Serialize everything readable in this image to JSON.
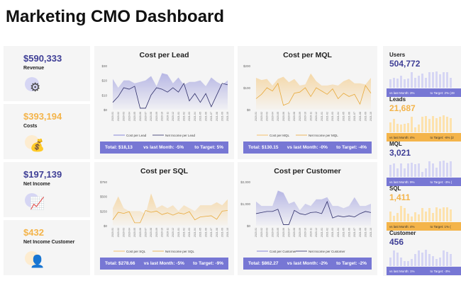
{
  "title": "Marketing CMO Dashboard",
  "colors": {
    "purple": "#7777d4",
    "navy": "#3f3f96",
    "orange": "#f4b44a",
    "light_purple": "#d6d6f4",
    "light_orange": "#fde2ad"
  },
  "kpis": [
    {
      "value": "$590,333",
      "label": "Revenue",
      "icon": "revenue-gear-chart-icon",
      "color": "#3f3f96",
      "circle": "#d6d6f4"
    },
    {
      "value": "$393,194",
      "label": "Costs",
      "icon": "money-bag-calculator-icon",
      "color": "#f4b44a",
      "circle": "#fdecd0"
    },
    {
      "value": "$197,139",
      "label": "Net Income",
      "icon": "income-chart-icon",
      "color": "#3f3f96",
      "circle": "#d6d6f4"
    },
    {
      "value": "$432",
      "label": "Net Income Customer",
      "icon": "customer-money-icon",
      "color": "#f4b44a",
      "circle": "#fdecd0"
    }
  ],
  "chart_data": [
    {
      "type": "line",
      "title": "Cost per Lead",
      "color": "#6b6bd0",
      "line_color": "#2e2e6a",
      "ylim": [
        0,
        30
      ],
      "yticks": [
        "$0",
        "$10",
        "$20",
        "$30"
      ],
      "ytick_values": [
        0,
        10,
        20,
        30
      ],
      "x": [
        "2020-01",
        "2020-02",
        "2020-03",
        "2020-04",
        "2020-05",
        "2020-06",
        "2020-07",
        "2020-08",
        "2020-09",
        "2020-10",
        "2020-11",
        "2020-12",
        "2021-01",
        "2021-02",
        "2021-03",
        "2021-04",
        "2021-05",
        "2021-06",
        "2021-07",
        "2021-08",
        "2021-09",
        "2021-10"
      ],
      "series": [
        {
          "name": "Cost per Lead",
          "kind": "area",
          "values": [
            21,
            15,
            20,
            20,
            18,
            19,
            20,
            23,
            16,
            25,
            24,
            18,
            22,
            17,
            19,
            19,
            20,
            16,
            22,
            19,
            17,
            20
          ]
        },
        {
          "name": "Net Income per Lead",
          "kind": "line",
          "values": [
            5,
            9,
            15,
            14,
            16,
            1,
            1,
            10,
            15,
            14,
            12,
            15,
            12,
            18,
            6,
            11,
            5,
            11,
            2,
            10,
            18,
            17
          ]
        }
      ],
      "summary": {
        "total": "Total: $18,13",
        "vs_last": "vs last Month: -5%",
        "to_target": "to Target: 5%"
      }
    },
    {
      "type": "line",
      "title": "Cost per MQL",
      "color": "#f4b44a",
      "line_color": "#e8a93a",
      "ylim": [
        0,
        200
      ],
      "yticks": [
        "$0",
        "$100",
        "$200"
      ],
      "ytick_values": [
        0,
        100,
        200
      ],
      "x": [
        "2020-01",
        "2020-02",
        "2020-03",
        "2020-04",
        "2020-05",
        "2020-06",
        "2020-07",
        "2020-08",
        "2020-09",
        "2020-10",
        "2020-11",
        "2020-12",
        "2021-01",
        "2021-02",
        "2021-03",
        "2021-04",
        "2021-05",
        "2021-06",
        "2021-07",
        "2021-08",
        "2021-09",
        "2021-10"
      ],
      "series": [
        {
          "name": "Cost per MQL",
          "kind": "area",
          "values": [
            145,
            135,
            140,
            110,
            140,
            150,
            125,
            140,
            110,
            115,
            165,
            130,
            110,
            110,
            115,
            110,
            130,
            140,
            120,
            120,
            115,
            145
          ]
        },
        {
          "name": "Net Income per MQL",
          "kind": "line",
          "values": [
            50,
            70,
            100,
            85,
            120,
            20,
            30,
            75,
            80,
            100,
            60,
            100,
            85,
            70,
            95,
            50,
            75,
            60,
            70,
            25,
            110,
            75
          ]
        }
      ],
      "summary": {
        "total": "Total: $130.15",
        "vs_last": "vs last Month: -0%",
        "to_target": "to Target: -4%"
      }
    },
    {
      "type": "line",
      "title": "Cost per SQL",
      "color": "#f4b44a",
      "line_color": "#e8a93a",
      "ylim": [
        0,
        750
      ],
      "yticks": [
        "$0",
        "$250",
        "$500",
        "$750"
      ],
      "ytick_values": [
        0,
        250,
        500,
        750
      ],
      "x": [
        "2020-01",
        "2020-02",
        "2020-03",
        "2020-04",
        "2020-05",
        "2020-06",
        "2020-07",
        "2020-08",
        "2020-09",
        "2020-10",
        "2020-11",
        "2020-12",
        "2021-01",
        "2021-02",
        "2021-03",
        "2021-04",
        "2021-05",
        "2021-06",
        "2021-07",
        "2021-08",
        "2021-09",
        "2021-10"
      ],
      "series": [
        {
          "name": "Cost per SQL",
          "kind": "area",
          "values": [
            300,
            500,
            300,
            250,
            250,
            250,
            200,
            550,
            300,
            350,
            300,
            350,
            250,
            350,
            300,
            250,
            350,
            350,
            350,
            400,
            350,
            450
          ]
        },
        {
          "name": "Net Income per SQL",
          "kind": "line",
          "values": [
            100,
            230,
            210,
            240,
            50,
            50,
            260,
            230,
            250,
            190,
            220,
            180,
            220,
            200,
            240,
            100,
            150,
            160,
            170,
            110,
            250,
            260
          ]
        }
      ],
      "summary": {
        "total": "Total: $278.66",
        "vs_last": "vs last Month: -5%",
        "to_target": "to Target: -9%"
      }
    },
    {
      "type": "line",
      "title": "Cost per Customer",
      "color": "#6b6bd0",
      "line_color": "#2e2e6a",
      "ylim": [
        0,
        2000
      ],
      "yticks": [
        "$0",
        "$1,000",
        "$2,000"
      ],
      "ytick_values": [
        0,
        1000,
        2000
      ],
      "x": [
        "2020-01",
        "2020-02",
        "2020-03",
        "2020-04",
        "2020-05",
        "2020-06",
        "2020-07",
        "2020-08",
        "2020-09",
        "2020-10",
        "2020-11",
        "2020-12",
        "2021-01",
        "2021-02",
        "2021-03",
        "2021-04",
        "2021-05",
        "2021-06",
        "2021-07",
        "2021-08",
        "2021-09",
        "2021-10"
      ],
      "series": [
        {
          "name": "Cost per Customer",
          "kind": "area",
          "values": [
            1100,
            900,
            900,
            900,
            1600,
            1500,
            1000,
            1100,
            700,
            1000,
            900,
            1200,
            1200,
            1300,
            900,
            900,
            800,
            900,
            1300,
            900,
            900,
            1000
          ]
        },
        {
          "name": "Net Income per Customer",
          "kind": "line",
          "values": [
            550,
            600,
            650,
            650,
            750,
            50,
            50,
            700,
            550,
            500,
            600,
            620,
            550,
            1100,
            350,
            450,
            400,
            450,
            400,
            550,
            650,
            600
          ]
        }
      ],
      "summary": {
        "total": "Total: $862.27",
        "vs_last": "vs last Month: -2%",
        "to_target": "to Target: -2%"
      }
    }
  ],
  "right_panel": [
    {
      "label": "Users",
      "value": "504,772",
      "theme": "purple",
      "vs_last": "vs last Month: 3%",
      "to_target": "to Target: 2% (49",
      "bars": [
        0.5,
        0.6,
        0.55,
        0.7,
        0.5,
        0.55,
        0.9,
        0.6,
        0.7,
        0.85,
        0.6,
        0.9,
        0.9,
        0.95,
        0.8,
        0.9,
        0.9,
        0.6
      ]
    },
    {
      "label": "Leads",
      "value": "21,687",
      "theme": "orange",
      "vs_last": "vs last Month: 4%",
      "to_target": "to Target: -6% (2",
      "bars": [
        0.6,
        0.8,
        0.5,
        0.45,
        0.5,
        0.55,
        0.9,
        0.3,
        0.45,
        0.9,
        0.95,
        0.8,
        0.95,
        0.85,
        0.9,
        1,
        0.9,
        0.85
      ]
    },
    {
      "label": "MQL",
      "value": "3,021",
      "theme": "purple",
      "vs_last": "vs last Month: 9%",
      "to_target": "to Target: -3% (",
      "bars": [
        0.7,
        0.8,
        0.5,
        0.8,
        0.5,
        0.8,
        0.85,
        0.75,
        0.8,
        0.3,
        0.5,
        0.9,
        0.8,
        0.55,
        0.9,
        0.95,
        0.85,
        0.9
      ]
    },
    {
      "label": "SQL",
      "value": "1,411",
      "theme": "orange",
      "vs_last": "vs last Month: 4%",
      "to_target": "to Target: 1% (",
      "bars": [
        0.6,
        0.35,
        0.5,
        0.9,
        0.8,
        0.45,
        0.3,
        0.55,
        0.4,
        0.8,
        0.6,
        0.8,
        0.5,
        0.85,
        0.75,
        0.85,
        0.85,
        0.7
      ]
    },
    {
      "label": "Customer",
      "value": "456",
      "theme": "purple",
      "vs_last": "vs last Month: 1%",
      "to_target": "to Target: -3%",
      "bars": [
        0.5,
        0.9,
        0.8,
        0.5,
        0.3,
        0.3,
        0.4,
        0.7,
        0.9,
        0.8,
        0.95,
        0.7,
        0.6,
        0.4,
        0.5,
        0.9,
        0.85,
        0.7
      ]
    }
  ]
}
